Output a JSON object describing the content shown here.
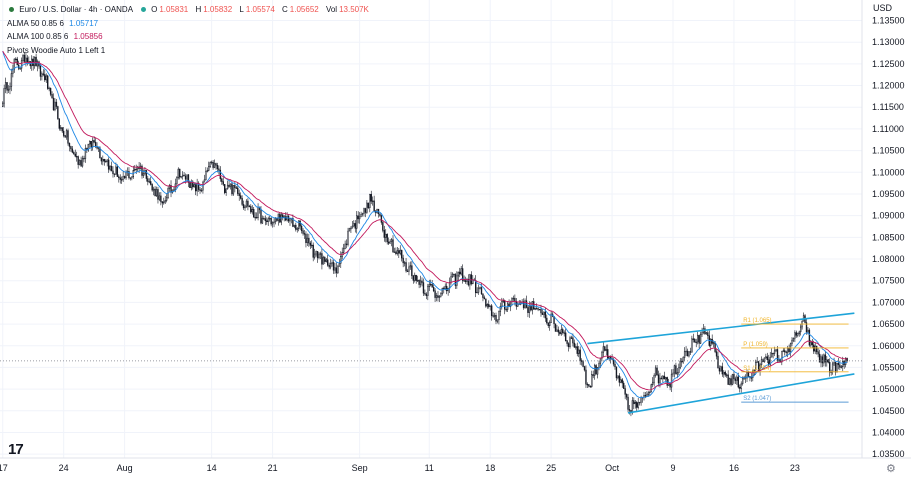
{
  "header": {
    "symbol": "Euro / U.S. Dollar · 4h · OANDA",
    "o_key": "O",
    "o_val": "1.05831",
    "h_key": "H",
    "h_val": "1.05832",
    "l_key": "L",
    "l_val": "1.05574",
    "c_key": "C",
    "c_val": "1.05652",
    "vol_key": "Vol",
    "vol_val": "13.507K",
    "alma50_label": "ALMA 50 0.85 6",
    "alma50_val": "1.05717",
    "alma100_label": "ALMA 100 0.85 6",
    "alma100_val": "1.05856",
    "pivots_label": "Pivots Woodie Auto 1 Left 1"
  },
  "currency": "USD",
  "logo": "17",
  "colors": {
    "up": "#26a69a",
    "down": "#ef5350",
    "candle": "#131722",
    "alma50": "#1e88e5",
    "alma100": "#c2185b",
    "channel": "#1ea4d9",
    "pivot_r1": "#f0b429",
    "pivot_p": "#f0b429",
    "pivot_s2": "#5b9bd5"
  },
  "chart_data": {
    "type": "candlestick",
    "title": "Euro / U.S. Dollar · 4h · OANDA",
    "ylim": [
      1.0355,
      1.1365
    ],
    "y_ticks": [
      "1.13500",
      "1.13000",
      "1.12500",
      "1.12000",
      "1.11500",
      "1.11000",
      "1.10500",
      "1.10000",
      "1.09500",
      "1.09000",
      "1.08500",
      "1.08000",
      "1.07500",
      "1.07000",
      "1.06500",
      "1.06000",
      "1.05500",
      "1.05000",
      "1.04500",
      "1.04000",
      "1.03500"
    ],
    "y_tick_values": [
      1.135,
      1.13,
      1.125,
      1.12,
      1.115,
      1.11,
      1.105,
      1.1,
      1.095,
      1.09,
      1.085,
      1.08,
      1.075,
      1.07,
      1.065,
      1.06,
      1.055,
      1.05,
      1.045,
      1.04,
      1.035
    ],
    "x_ticks": [
      "17",
      "24",
      "Aug",
      "14",
      "21",
      "Sep",
      "11",
      "18",
      "25",
      "Oct",
      "9",
      "16",
      "23"
    ],
    "x_tick_index": [
      0,
      42,
      84,
      144,
      186,
      246,
      294,
      336,
      378,
      420,
      462,
      504,
      546
    ],
    "current_price": 1.05652,
    "price_path": [
      [
        0,
        1.117
      ],
      [
        8,
        1.1245
      ],
      [
        18,
        1.1265
      ],
      [
        28,
        1.1225
      ],
      [
        40,
        1.1105
      ],
      [
        52,
        1.102
      ],
      [
        62,
        1.1075
      ],
      [
        72,
        1.102
      ],
      [
        82,
        1.098
      ],
      [
        95,
        1.1015
      ],
      [
        110,
        1.0925
      ],
      [
        122,
        1.1
      ],
      [
        135,
        1.0955
      ],
      [
        145,
        1.1025
      ],
      [
        152,
        1.097
      ],
      [
        160,
        1.0965
      ],
      [
        170,
        1.0915
      ],
      [
        182,
        1.0885
      ],
      [
        195,
        1.0895
      ],
      [
        206,
        1.0865
      ],
      [
        216,
        1.081
      ],
      [
        230,
        1.0775
      ],
      [
        240,
        1.0875
      ],
      [
        254,
        1.0935
      ],
      [
        266,
        1.0845
      ],
      [
        278,
        1.0785
      ],
      [
        290,
        1.0735
      ],
      [
        302,
        1.072
      ],
      [
        314,
        1.0765
      ],
      [
        326,
        1.074
      ],
      [
        338,
        1.0665
      ],
      [
        350,
        1.0705
      ],
      [
        360,
        1.0695
      ],
      [
        372,
        1.0675
      ],
      [
        384,
        1.0635
      ],
      [
        396,
        1.0595
      ],
      [
        404,
        1.0505
      ],
      [
        414,
        1.0595
      ],
      [
        422,
        1.0545
      ],
      [
        432,
        1.0455
      ],
      [
        440,
        1.047
      ],
      [
        450,
        1.0535
      ],
      [
        460,
        1.052
      ],
      [
        470,
        1.0585
      ],
      [
        478,
        1.0615
      ],
      [
        486,
        1.0625
      ],
      [
        496,
        1.0535
      ],
      [
        506,
        1.0515
      ],
      [
        516,
        1.0535
      ],
      [
        526,
        1.0575
      ],
      [
        536,
        1.0575
      ],
      [
        544,
        1.0605
      ],
      [
        552,
        1.0655
      ],
      [
        558,
        1.0595
      ],
      [
        566,
        1.0565
      ],
      [
        574,
        1.0545
      ],
      [
        582,
        1.0565
      ]
    ],
    "channel_upper": [
      [
        403,
        1.0605
      ],
      [
        587,
        1.0675
      ]
    ],
    "channel_lower": [
      [
        431,
        1.0445
      ],
      [
        587,
        1.0535
      ]
    ],
    "pivot_levels": [
      {
        "label": "R1 (1.065)",
        "value": 1.065,
        "from": 509,
        "to": 583
      },
      {
        "label": "P (1.059)",
        "value": 1.0595,
        "from": 509,
        "to": 583
      },
      {
        "label": "S1 (1.054)",
        "value": 1.054,
        "from": 509,
        "to": 583
      },
      {
        "label": "S2 (1.047)",
        "value": 1.047,
        "from": 509,
        "to": 583
      }
    ],
    "series": [
      {
        "name": "ALMA 50 0.85 6",
        "value": 1.05717
      },
      {
        "name": "ALMA 100 0.85 6",
        "value": 1.05856
      }
    ]
  }
}
